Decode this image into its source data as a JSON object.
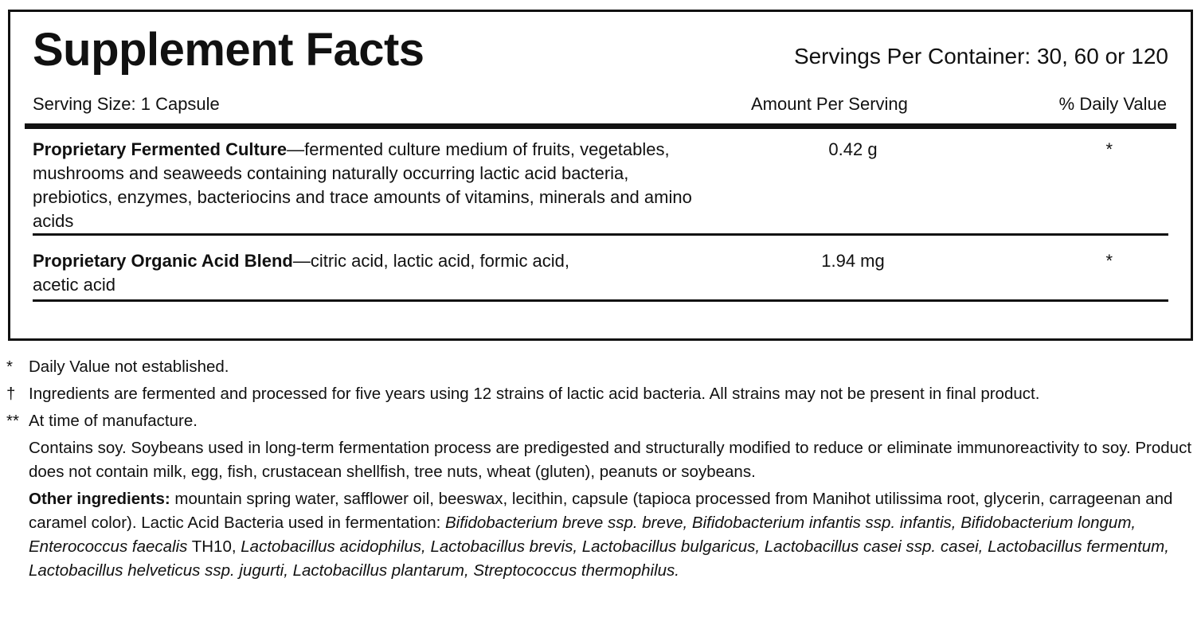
{
  "label": {
    "title": "Supplement Facts",
    "servings_per_container": "Servings Per Container: 30, 60 or 120",
    "serving_size": "Serving Size: 1 Capsule",
    "amount_header": "Amount Per Serving",
    "daily_value_header": "% Daily Value",
    "rows": [
      {
        "name": "Proprietary Fermented Culture",
        "description": "—fermented culture medium of fruits, vegetables, mushrooms and seaweeds containing naturally occurring lactic acid bacteria, prebiotics, enzymes, bacteriocins and trace amounts of vitamins, minerals and amino acids",
        "amount": "0.42 g",
        "daily_value": "*"
      },
      {
        "name": "Proprietary Organic Acid Blend",
        "description": "—citric acid, lactic acid, formic acid, acetic acid",
        "amount": "1.94 mg",
        "daily_value": "*"
      }
    ]
  },
  "footnotes": [
    {
      "symbol": "*",
      "text": "Daily Value not established."
    },
    {
      "symbol": "†",
      "text": "Ingredients are fermented and processed for five years using 12 strains of lactic acid bacteria. All strains may not be present in final product."
    },
    {
      "symbol": "**",
      "text": "At time of manufacture."
    },
    {
      "symbol": "",
      "text": "Contains soy.  Soybeans used in long-term fermentation process are predigested and structurally modified to reduce or eliminate immunoreactivity to soy.  Product does not contain milk, egg, fish, crustacean shellfish, tree nuts, wheat (gluten), peanuts or soybeans."
    }
  ],
  "other_ingredients": {
    "label": "Other ingredients:",
    "text1": " mountain spring water, safflower oil, beeswax, lecithin, capsule (tapioca processed from Manihot utilissima root, glycerin, carrageenan and caramel color). Lactic Acid Bacteria used in fermentation: ",
    "italic1": "Bifidobacterium breve ssp. breve, Bifidobacterium infantis ssp. infantis, Bifidobacterium longum, Enterococcus faecalis",
    "text2": " TH10, ",
    "italic2": "Lactobacillus acidophilus, Lactobacillus brevis, Lactobacillus bulgaricus, Lactobacillus casei ssp. casei, Lactobacillus fermentum, Lactobacillus helveticus ssp. jugurti, Lactobacillus plantarum, Streptococcus thermophilus."
  }
}
